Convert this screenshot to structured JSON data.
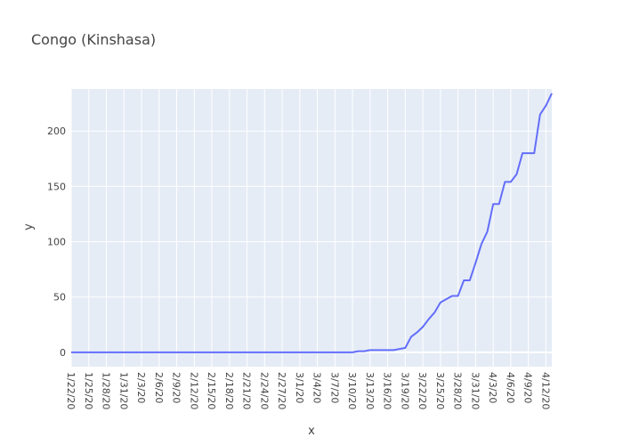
{
  "chart_data": {
    "type": "line",
    "title": "Congo (Kinshasa)",
    "xlabel": "x",
    "ylabel": "y",
    "ylim": [
      -13,
      238
    ],
    "yticks": [
      0,
      50,
      100,
      150,
      200
    ],
    "xticks": [
      "1/22/20",
      "1/25/20",
      "1/28/20",
      "1/31/20",
      "2/3/20",
      "2/6/20",
      "2/9/20",
      "2/12/20",
      "2/15/20",
      "2/18/20",
      "2/21/20",
      "2/24/20",
      "2/27/20",
      "3/1/20",
      "3/4/20",
      "3/7/20",
      "3/10/20",
      "3/13/20",
      "3/16/20",
      "3/19/20",
      "3/22/20",
      "3/25/20",
      "3/28/20",
      "3/31/20",
      "4/3/20",
      "4/6/20",
      "4/9/20",
      "4/12/20"
    ],
    "colors": {
      "line": "#636efa",
      "plot_bg": "#e5ecf6",
      "grid": "#ffffff",
      "text": "#444444"
    },
    "series": [
      {
        "name": "Congo (Kinshasa)",
        "start_date": "1/22/20",
        "values": [
          0,
          0,
          0,
          0,
          0,
          0,
          0,
          0,
          0,
          0,
          0,
          0,
          0,
          0,
          0,
          0,
          0,
          0,
          0,
          0,
          0,
          0,
          0,
          0,
          0,
          0,
          0,
          0,
          0,
          0,
          0,
          0,
          0,
          0,
          0,
          0,
          0,
          0,
          0,
          0,
          0,
          0,
          0,
          0,
          0,
          0,
          0,
          0,
          0,
          1,
          1,
          2,
          2,
          2,
          2,
          2,
          3,
          4,
          14,
          18,
          23,
          30,
          36,
          45,
          48,
          51,
          51,
          65,
          65,
          81,
          98,
          109,
          134,
          134,
          154,
          154,
          161,
          180,
          180,
          180,
          215,
          223,
          234
        ]
      }
    ]
  }
}
